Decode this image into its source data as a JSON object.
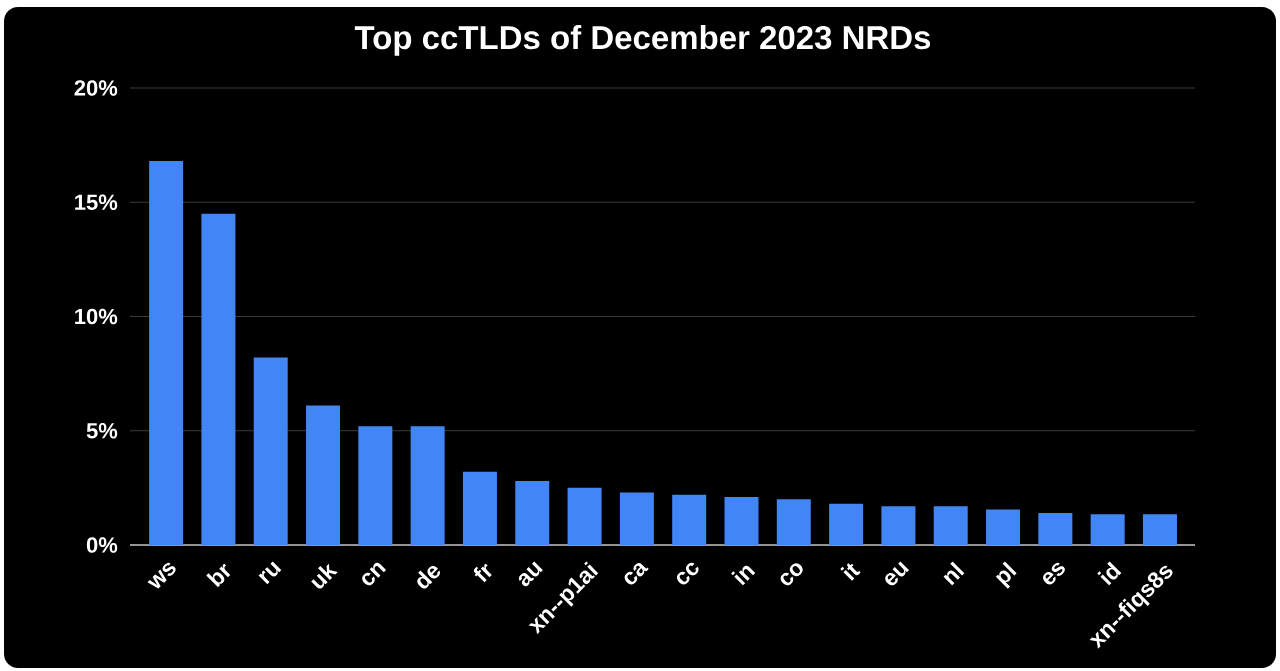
{
  "chart_data": {
    "type": "bar",
    "title": "Top ccTLDs of December 2023 NRDs",
    "categories": [
      "ws",
      "br",
      "ru",
      "uk",
      "cn",
      "de",
      "fr",
      "au",
      "xn--p1ai",
      "ca",
      "cc",
      "in",
      "co",
      "it",
      "eu",
      "nl",
      "pl",
      "es",
      "id",
      "xn--fiqs8s"
    ],
    "values": [
      16.8,
      14.5,
      8.2,
      6.1,
      5.2,
      5.2,
      3.2,
      2.8,
      2.5,
      2.3,
      2.2,
      2.1,
      2.0,
      1.8,
      1.7,
      1.7,
      1.55,
      1.4,
      1.35,
      1.35
    ],
    "color": "#4285f4",
    "ylim": [
      0,
      20
    ],
    "yticks": [
      {
        "value": 0,
        "label": "0%"
      },
      {
        "value": 5,
        "label": "5%"
      },
      {
        "value": 10,
        "label": "10%"
      },
      {
        "value": 15,
        "label": "15%"
      },
      {
        "value": 20,
        "label": "20%"
      }
    ],
    "grid": "y"
  }
}
